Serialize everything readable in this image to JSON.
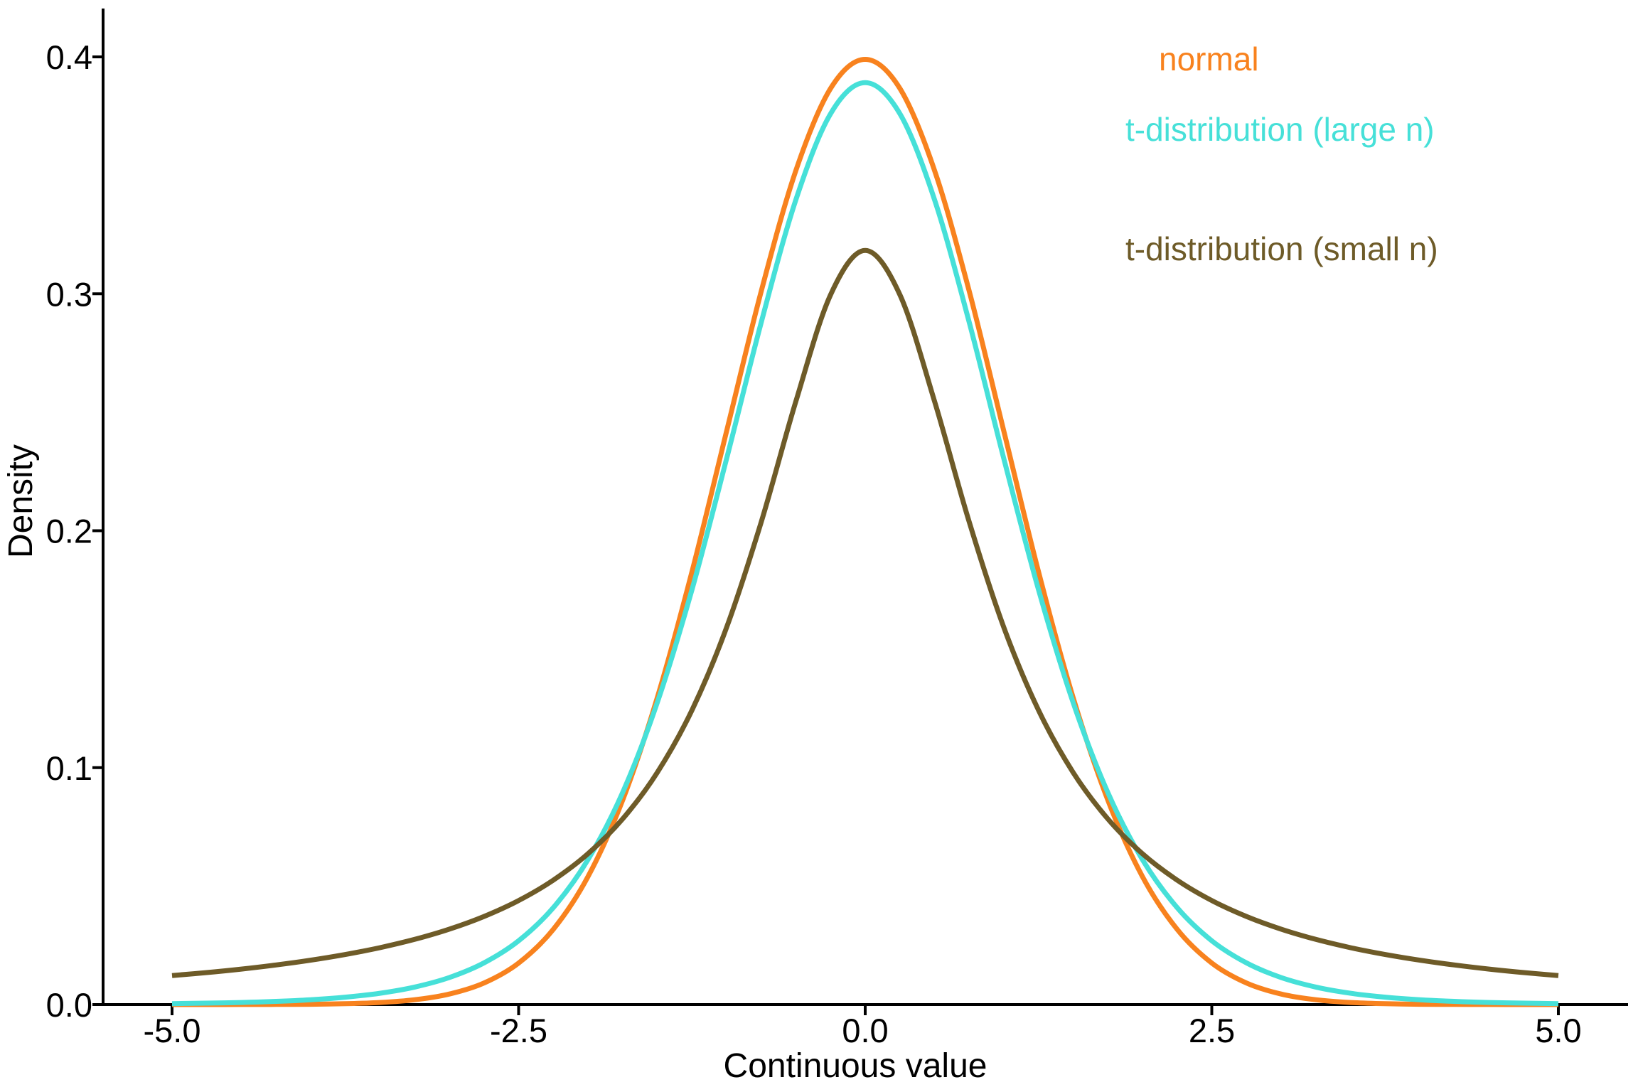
{
  "figure": {
    "background_color": "#FFFFFF",
    "text_color": "#000000"
  },
  "chart_data": {
    "type": "line",
    "title": "",
    "xlabel": "Continuous value",
    "ylabel": "Density",
    "xlim": [
      -5,
      5
    ],
    "ylim": [
      0,
      0.4
    ],
    "grid": false,
    "legend_position": "top-right-inside, text-only colored labels",
    "x_tick_values": [
      -5,
      -2.5,
      0,
      2.5,
      5
    ],
    "x_tick_labels": [
      "-5.0",
      "-2.5",
      "0.0",
      "2.5",
      "5.0"
    ],
    "y_tick_values": [
      0,
      0.1,
      0.2,
      0.3,
      0.4
    ],
    "y_tick_labels": [
      "0.0",
      "0.1",
      "0.2",
      "0.3",
      "0.4"
    ],
    "x": [
      -5,
      -4.75,
      -4.5,
      -4.25,
      -4,
      -3.75,
      -3.5,
      -3.25,
      -3,
      -2.75,
      -2.5,
      -2.25,
      -2,
      -1.75,
      -1.5,
      -1.25,
      -1,
      -0.75,
      -0.5,
      -0.25,
      0,
      0.25,
      0.5,
      0.75,
      1,
      1.25,
      1.5,
      1.75,
      2,
      2.25,
      2.5,
      2.75,
      3,
      3.25,
      3.5,
      3.75,
      4,
      4.25,
      4.5,
      4.75,
      5
    ],
    "series": [
      {
        "name": "normal",
        "label": "normal",
        "color": "#F8821E",
        "peak_value": 0.399,
        "values": [
          0.0,
          1e-05,
          2e-05,
          5e-05,
          0.00013,
          0.00035,
          0.00087,
          0.00203,
          0.00443,
          0.00909,
          0.01753,
          0.03174,
          0.05399,
          0.08628,
          0.12952,
          0.18265,
          0.24197,
          0.30114,
          0.35207,
          0.38667,
          0.39894,
          0.38667,
          0.35207,
          0.30114,
          0.24197,
          0.18265,
          0.12952,
          0.08628,
          0.05399,
          0.03174,
          0.01753,
          0.00909,
          0.00443,
          0.00203,
          0.00087,
          0.00035,
          0.00013,
          5e-05,
          2e-05,
          1e-05,
          0.0
        ]
      },
      {
        "name": "t-large-n",
        "label": "t-distribution (large n)",
        "color": "#46E0D8",
        "peak_value": 0.389,
        "values": [
          0.0004,
          0.00059,
          0.00088,
          0.00134,
          0.00203,
          0.00311,
          0.00478,
          0.00738,
          0.01141,
          0.01757,
          0.02692,
          0.0409,
          0.06115,
          0.08949,
          0.12745,
          0.1751,
          0.23036,
          0.28797,
          0.3397,
          0.376,
          0.38911,
          0.376,
          0.3397,
          0.28797,
          0.23036,
          0.1751,
          0.12745,
          0.08949,
          0.06115,
          0.0409,
          0.02692,
          0.01757,
          0.01141,
          0.00738,
          0.00478,
          0.00311,
          0.00203,
          0.00134,
          0.00088,
          0.00059,
          0.0004
        ]
      },
      {
        "name": "t-small-n",
        "label": "t-distribution (small n)",
        "color": "#6E5B28",
        "peak_value": 0.318,
        "values": [
          0.01224,
          0.01351,
          0.01498,
          0.0167,
          0.01872,
          0.02113,
          0.02402,
          0.02753,
          0.03183,
          0.03718,
          0.04391,
          0.05251,
          0.06366,
          0.07835,
          0.09794,
          0.12422,
          0.15915,
          0.20372,
          0.25465,
          0.29958,
          0.31831,
          0.29958,
          0.25465,
          0.20372,
          0.15915,
          0.12422,
          0.09794,
          0.07835,
          0.06366,
          0.05251,
          0.04391,
          0.03718,
          0.03183,
          0.02753,
          0.02402,
          0.02113,
          0.01872,
          0.0167,
          0.01498,
          0.01351,
          0.01224
        ]
      }
    ]
  }
}
